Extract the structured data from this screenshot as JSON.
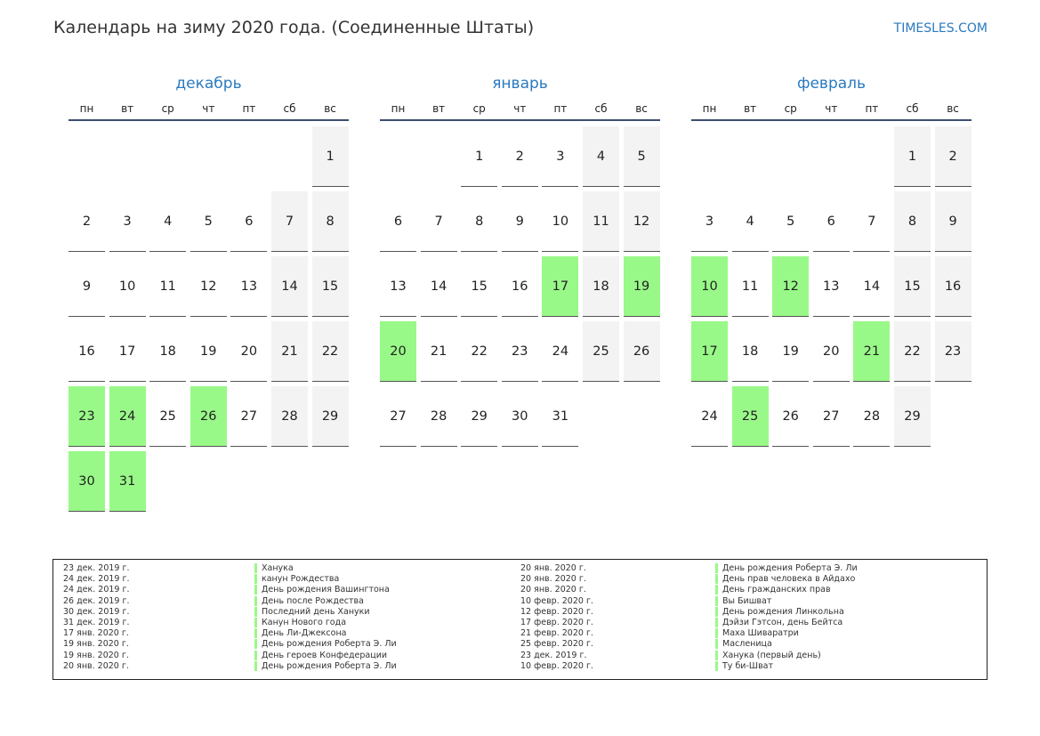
{
  "title": "Календарь на зиму 2020 года. (Соединенные Штаты)",
  "site": "TIMESLES.COM",
  "weekdays": [
    "пн",
    "вт",
    "ср",
    "чт",
    "пт",
    "сб",
    "вс"
  ],
  "colors": {
    "holiday": "#99f988",
    "weekend": "#f3f3f3",
    "accent": "#2a7abf"
  },
  "months": [
    {
      "name": "декабрь",
      "offset": 6,
      "days": 31,
      "holidays": [
        23,
        24,
        26,
        30,
        31
      ]
    },
    {
      "name": "январь",
      "offset": 2,
      "days": 31,
      "holidays": [
        17,
        19,
        20
      ]
    },
    {
      "name": "февраль",
      "offset": 5,
      "days": 29,
      "holidays": [
        10,
        12,
        17,
        21,
        25
      ]
    }
  ],
  "legend": [
    {
      "date": "23 дек. 2019 г.",
      "name": "Ханука"
    },
    {
      "date": "24 дек. 2019 г.",
      "name": "канун Рождества"
    },
    {
      "date": "24 дек. 2019 г.",
      "name": "День рождения Вашингтона"
    },
    {
      "date": "26 дек. 2019 г.",
      "name": "День после Рождества"
    },
    {
      "date": "30 дек. 2019 г.",
      "name": "Последний день Хануки"
    },
    {
      "date": "31 дек. 2019 г.",
      "name": "Канун Нового года"
    },
    {
      "date": "17 янв. 2020 г.",
      "name": "День Ли-Джексона"
    },
    {
      "date": "19 янв. 2020 г.",
      "name": "День рождения Роберта Э. Ли"
    },
    {
      "date": "19 янв. 2020 г.",
      "name": "День героев Конфедерации"
    },
    {
      "date": "20 янв. 2020 г.",
      "name": "День рождения Роберта Э. Ли"
    },
    {
      "date": "20 янв. 2020 г.",
      "name": "День рождения Роберта Э. Ли"
    },
    {
      "date": "20 янв. 2020 г.",
      "name": "День прав человека в Айдахо"
    },
    {
      "date": "20 янв. 2020 г.",
      "name": "День гражданских прав"
    },
    {
      "date": "10 февр. 2020 г.",
      "name": "Вы Бишват"
    },
    {
      "date": "12 февр. 2020 г.",
      "name": "День рождения Линкольна"
    },
    {
      "date": "17 февр. 2020 г.",
      "name": "Дэйзи Гэтсон, день Бейтса"
    },
    {
      "date": "21 февр. 2020 г.",
      "name": "Маха Шиваратри"
    },
    {
      "date": "25 февр. 2020 г.",
      "name": "Масленица"
    },
    {
      "date": "23 дек. 2019 г.",
      "name": "Ханука (первый день)"
    },
    {
      "date": "10 февр. 2020 г.",
      "name": "Ту би-Шват"
    }
  ]
}
